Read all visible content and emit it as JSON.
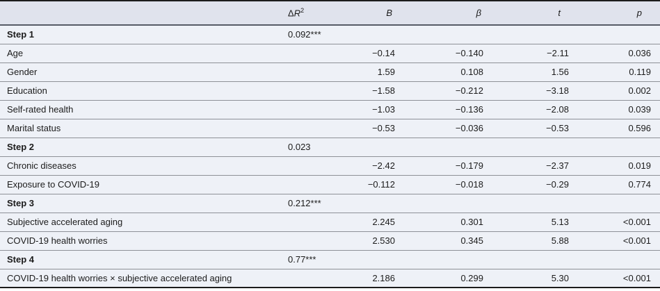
{
  "colors": {
    "header_bg": "#e0e3ed",
    "row_bg": "#eef1f7",
    "row_rule": "#8d9097",
    "frame": "#1c1c1c",
    "text": "#1b1b1b"
  },
  "header": {
    "label": "",
    "delta_r2": {
      "delta": "Δ",
      "r": "R",
      "exp": "2"
    },
    "b": "B",
    "beta": "β",
    "t": "t",
    "p": "p"
  },
  "rows": [
    {
      "label": "Step 1",
      "dr2": "0.092***",
      "b": "",
      "beta": "",
      "t": "",
      "p": ""
    },
    {
      "label": "Age",
      "dr2": "",
      "b": "−0.14",
      "beta": "−0.140",
      "t": "−2.11",
      "p": "0.036"
    },
    {
      "label": "Gender",
      "dr2": "",
      "b": "1.59",
      "beta": "0.108",
      "t": "1.56",
      "p": "0.119"
    },
    {
      "label": "Education",
      "dr2": "",
      "b": "−1.58",
      "beta": "−0.212",
      "t": "−3.18",
      "p": "0.002"
    },
    {
      "label": "Self-rated health",
      "dr2": "",
      "b": "−1.03",
      "beta": "−0.136",
      "t": "−2.08",
      "p": "0.039"
    },
    {
      "label": "Marital status",
      "dr2": "",
      "b": "−0.53",
      "beta": "−0.036",
      "t": "−0.53",
      "p": "0.596"
    },
    {
      "label": "Step 2",
      "dr2": "0.023",
      "b": "",
      "beta": "",
      "t": "",
      "p": ""
    },
    {
      "label": "Chronic diseases",
      "dr2": "",
      "b": "−2.42",
      "beta": "−0.179",
      "t": "−2.37",
      "p": "0.019"
    },
    {
      "label": "Exposure to COVID-19",
      "dr2": "",
      "b": "−0.112",
      "beta": "−0.018",
      "t": "−0.29",
      "p": "0.774"
    },
    {
      "label": "Step 3",
      "dr2": "0.212***",
      "b": "",
      "beta": "",
      "t": "",
      "p": ""
    },
    {
      "label": "Subjective accelerated aging",
      "dr2": "",
      "b": "2.245",
      "beta": "0.301",
      "t": "5.13",
      "p": "<0.001"
    },
    {
      "label": "COVID-19 health worries",
      "dr2": "",
      "b": "2.530",
      "beta": "0.345",
      "t": "5.88",
      "p": "<0.001"
    },
    {
      "label": "Step 4",
      "dr2": "0.77***",
      "b": "",
      "beta": "",
      "t": "",
      "p": ""
    },
    {
      "label": "COVID-19 health worries × subjective accelerated aging",
      "dr2": "",
      "b": "2.186",
      "beta": "0.299",
      "t": "5.30",
      "p": "<0.001"
    }
  ]
}
